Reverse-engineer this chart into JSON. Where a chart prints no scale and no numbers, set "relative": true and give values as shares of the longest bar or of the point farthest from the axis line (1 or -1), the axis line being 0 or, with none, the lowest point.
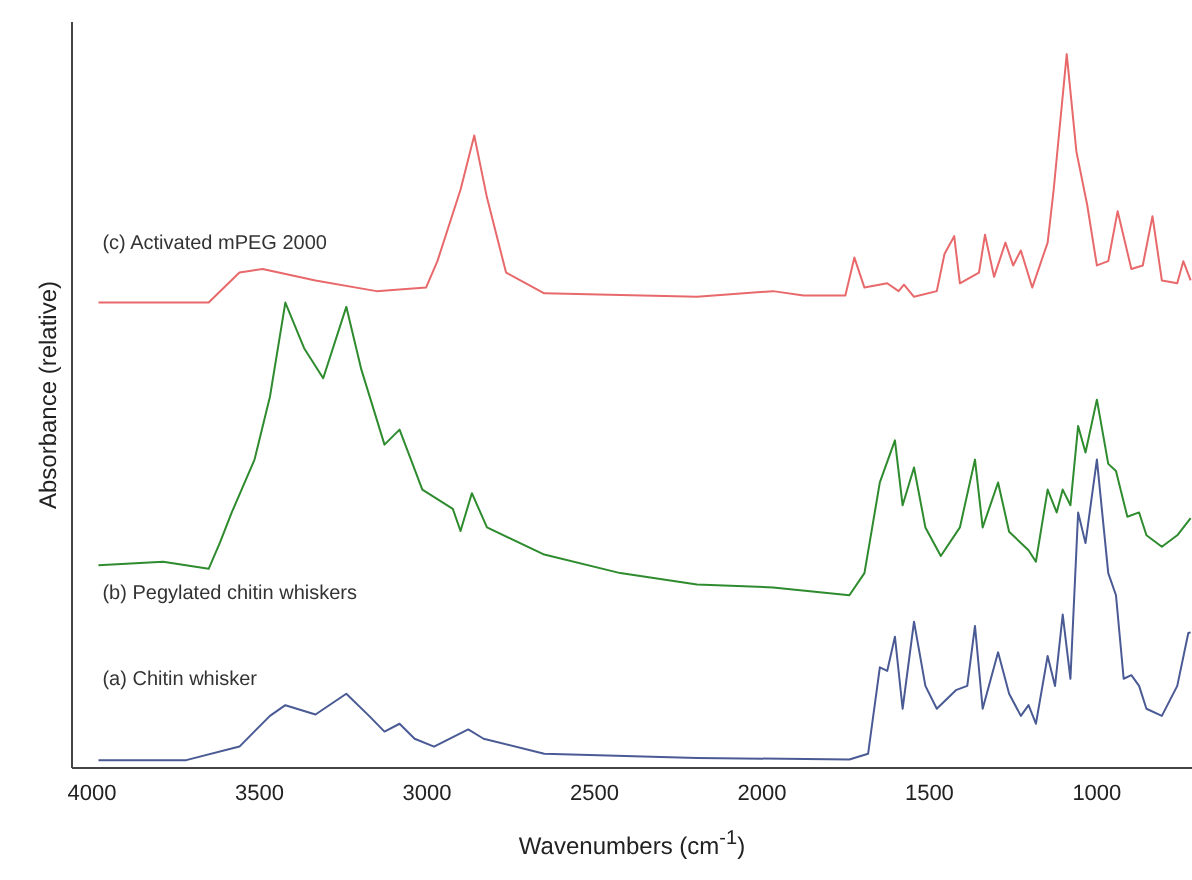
{
  "chart_data": {
    "type": "line",
    "relative": true,
    "xlabel": "Wavenumbers (cm$^{-1}$)",
    "ylabel": "Absorbance (relative)",
    "xlim": [
      4060,
      716
    ],
    "xticks": [
      4000,
      3500,
      3000,
      2500,
      2000,
      1500,
      1000
    ],
    "tick_labels": "x",
    "series": [
      {
        "name": "(a) Chitin whisker",
        "color": "#4a5a94",
        "x": [
          3981,
          3719,
          3560,
          3469,
          3423,
          3333,
          3241,
          3173,
          3127,
          3082,
          3037,
          2979,
          2877,
          2831,
          2650,
          2194,
          1739,
          1683,
          1648,
          1626,
          1603,
          1580,
          1546,
          1512,
          1478,
          1421,
          1387,
          1364,
          1341,
          1295,
          1262,
          1227,
          1204,
          1182,
          1147,
          1125,
          1102,
          1079,
          1056,
          1034,
          1000,
          966,
          943,
          920,
          897,
          874,
          852,
          806,
          760,
          727,
          720
        ],
        "values": [
          0.011,
          0.011,
          0.03,
          0.073,
          0.088,
          0.075,
          0.104,
          0.073,
          0.051,
          0.062,
          0.041,
          0.03,
          0.054,
          0.041,
          0.02,
          0.014,
          0.012,
          0.02,
          0.141,
          0.136,
          0.184,
          0.083,
          0.205,
          0.115,
          0.083,
          0.109,
          0.115,
          0.199,
          0.083,
          0.162,
          0.104,
          0.073,
          0.088,
          0.062,
          0.157,
          0.115,
          0.215,
          0.125,
          0.358,
          0.315,
          0.432,
          0.273,
          0.242,
          0.125,
          0.13,
          0.115,
          0.083,
          0.073,
          0.115,
          0.189,
          0.19
        ]
      },
      {
        "name": "(b) Pegylated chitin whiskers",
        "color": "#2e8b2e",
        "x": [
          3981,
          3788,
          3652,
          3618,
          3583,
          3515,
          3469,
          3423,
          3367,
          3310,
          3241,
          3196,
          3127,
          3082,
          3014,
          2923,
          2900,
          2866,
          2821,
          2650,
          2423,
          2194,
          1967,
          1739,
          1694,
          1648,
          1603,
          1580,
          1546,
          1512,
          1466,
          1409,
          1364,
          1341,
          1295,
          1262,
          1204,
          1182,
          1147,
          1120,
          1102,
          1079,
          1056,
          1034,
          1000,
          966,
          943,
          909,
          874,
          852,
          806,
          760,
          720
        ],
        "values": [
          0.284,
          0.289,
          0.279,
          0.316,
          0.358,
          0.432,
          0.52,
          0.652,
          0.588,
          0.546,
          0.646,
          0.558,
          0.453,
          0.474,
          0.39,
          0.363,
          0.332,
          0.385,
          0.337,
          0.299,
          0.273,
          0.257,
          0.253,
          0.242,
          0.273,
          0.4,
          0.459,
          0.368,
          0.421,
          0.337,
          0.297,
          0.337,
          0.432,
          0.337,
          0.4,
          0.331,
          0.305,
          0.289,
          0.39,
          0.358,
          0.39,
          0.368,
          0.479,
          0.442,
          0.516,
          0.426,
          0.416,
          0.352,
          0.358,
          0.326,
          0.31,
          0.326,
          0.35
        ]
      },
      {
        "name": "(c) Activated mPEG 2000",
        "color": "#e8696b",
        "x": [
          3981,
          3652,
          3560,
          3491,
          3333,
          3151,
          3003,
          2969,
          2900,
          2859,
          2821,
          2764,
          2650,
          2194,
          1967,
          1876,
          1751,
          1724,
          1694,
          1626,
          1592,
          1576,
          1546,
          1478,
          1455,
          1426,
          1409,
          1352,
          1334,
          1307,
          1273,
          1250,
          1227,
          1193,
          1147,
          1129,
          1090,
          1061,
          1029,
          1000,
          966,
          938,
          897,
          863,
          834,
          806,
          760,
          742,
          720
        ],
        "values": [
          0.652,
          0.652,
          0.694,
          0.699,
          0.683,
          0.668,
          0.673,
          0.71,
          0.81,
          0.886,
          0.799,
          0.694,
          0.665,
          0.66,
          0.668,
          0.662,
          0.662,
          0.715,
          0.673,
          0.679,
          0.668,
          0.677,
          0.66,
          0.668,
          0.72,
          0.745,
          0.679,
          0.694,
          0.747,
          0.688,
          0.736,
          0.704,
          0.725,
          0.673,
          0.736,
          0.81,
          1,
          0.863,
          0.789,
          0.704,
          0.71,
          0.78,
          0.699,
          0.704,
          0.773,
          0.683,
          0.679,
          0.71,
          0.683
        ]
      }
    ]
  }
}
